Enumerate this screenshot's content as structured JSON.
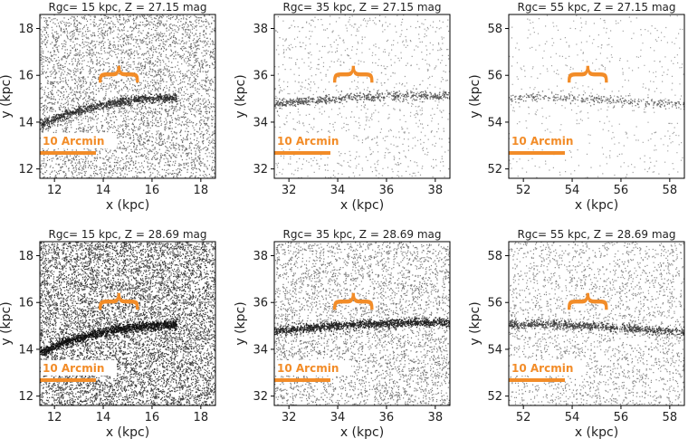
{
  "figure": {
    "grid_rows": 2,
    "grid_cols": 3
  },
  "annotation": {
    "scalebar_label": "10 Arcmin",
    "brace_glyph": "{",
    "accent_color": "#f28c28"
  },
  "chart_data": [
    {
      "type": "scatter",
      "title": "Rgc= 15 kpc, Z = 27.15 mag",
      "xlabel": "x (kpc)",
      "ylabel": "y (kpc)",
      "xlim": [
        11.4,
        18.6
      ],
      "ylim": [
        11.6,
        18.6
      ],
      "xticks": [
        12,
        14,
        16,
        18
      ],
      "yticks": [
        12,
        14,
        16,
        18
      ],
      "background_density": 0.55,
      "stream_strength": 0.7,
      "stream_track": [
        [
          11.4,
          13.9
        ],
        [
          12.5,
          14.35
        ],
        [
          13.5,
          14.65
        ],
        [
          14.5,
          14.85
        ],
        [
          15.5,
          15.0
        ],
        [
          16.5,
          15.05
        ],
        [
          17.0,
          15.05
        ]
      ],
      "scalebar_length_kpc": 2.3,
      "brace_center_x": 14.7
    },
    {
      "type": "scatter",
      "title": "Rgc= 35 kpc, Z = 27.15 mag",
      "xlabel": "x (kpc)",
      "ylabel": "y (kpc)",
      "xlim": [
        31.4,
        38.6
      ],
      "ylim": [
        31.6,
        38.6
      ],
      "xticks": [
        32,
        34,
        36,
        38
      ],
      "yticks": [
        32,
        34,
        36,
        38
      ],
      "background_density": 0.12,
      "stream_strength": 0.45,
      "stream_track": [
        [
          31.4,
          34.8
        ],
        [
          33.0,
          34.95
        ],
        [
          35.0,
          35.1
        ],
        [
          37.0,
          35.15
        ],
        [
          38.6,
          35.15
        ]
      ],
      "scalebar_length_kpc": 2.3,
      "brace_center_x": 34.7
    },
    {
      "type": "scatter",
      "title": "Rgc= 55 kpc, Z = 27.15 mag",
      "xlabel": "x (kpc)",
      "ylabel": "y (kpc)",
      "xlim": [
        51.4,
        58.6
      ],
      "ylim": [
        51.6,
        58.6
      ],
      "xticks": [
        52,
        54,
        56,
        58
      ],
      "yticks": [
        52,
        54,
        56,
        58
      ],
      "background_density": 0.06,
      "stream_strength": 0.25,
      "stream_track": [
        [
          51.4,
          55.1
        ],
        [
          53.0,
          55.1
        ],
        [
          55.0,
          55.0
        ],
        [
          57.0,
          54.85
        ],
        [
          58.6,
          54.75
        ]
      ],
      "scalebar_length_kpc": 2.3,
      "brace_center_x": 54.7
    },
    {
      "type": "scatter",
      "title": "Rgc= 15 kpc, Z = 28.69 mag",
      "xlabel": "x (kpc)",
      "ylabel": "y (kpc)",
      "xlim": [
        11.4,
        18.6
      ],
      "ylim": [
        11.6,
        18.6
      ],
      "xticks": [
        12,
        14,
        16,
        18
      ],
      "yticks": [
        12,
        14,
        16,
        18
      ],
      "background_density": 1.0,
      "stream_strength": 1.0,
      "stream_track": [
        [
          11.4,
          13.9
        ],
        [
          12.5,
          14.35
        ],
        [
          13.5,
          14.65
        ],
        [
          14.5,
          14.85
        ],
        [
          15.5,
          15.0
        ],
        [
          16.5,
          15.05
        ],
        [
          17.0,
          15.05
        ]
      ],
      "scalebar_length_kpc": 2.3,
      "brace_center_x": 14.7
    },
    {
      "type": "scatter",
      "title": "Rgc= 35 kpc, Z = 28.69 mag",
      "xlabel": "x (kpc)",
      "ylabel": "y (kpc)",
      "xlim": [
        31.4,
        38.6
      ],
      "ylim": [
        31.6,
        38.6
      ],
      "xticks": [
        32,
        34,
        36,
        38
      ],
      "yticks": [
        32,
        34,
        36,
        38
      ],
      "background_density": 0.45,
      "stream_strength": 0.9,
      "stream_track": [
        [
          31.4,
          34.8
        ],
        [
          33.0,
          34.95
        ],
        [
          35.0,
          35.1
        ],
        [
          37.0,
          35.15
        ],
        [
          38.6,
          35.15
        ]
      ],
      "scalebar_length_kpc": 2.3,
      "brace_center_x": 34.7
    },
    {
      "type": "scatter",
      "title": "Rgc= 55 kpc, Z = 28.69 mag",
      "xlabel": "x (kpc)",
      "ylabel": "y (kpc)",
      "xlim": [
        51.4,
        58.6
      ],
      "ylim": [
        51.6,
        58.6
      ],
      "xticks": [
        52,
        54,
        56,
        58
      ],
      "yticks": [
        52,
        54,
        56,
        58
      ],
      "background_density": 0.3,
      "stream_strength": 0.6,
      "stream_track": [
        [
          51.4,
          55.1
        ],
        [
          53.0,
          55.1
        ],
        [
          55.0,
          55.0
        ],
        [
          57.0,
          54.85
        ],
        [
          58.6,
          54.75
        ]
      ],
      "scalebar_length_kpc": 2.3,
      "brace_center_x": 54.7
    }
  ]
}
